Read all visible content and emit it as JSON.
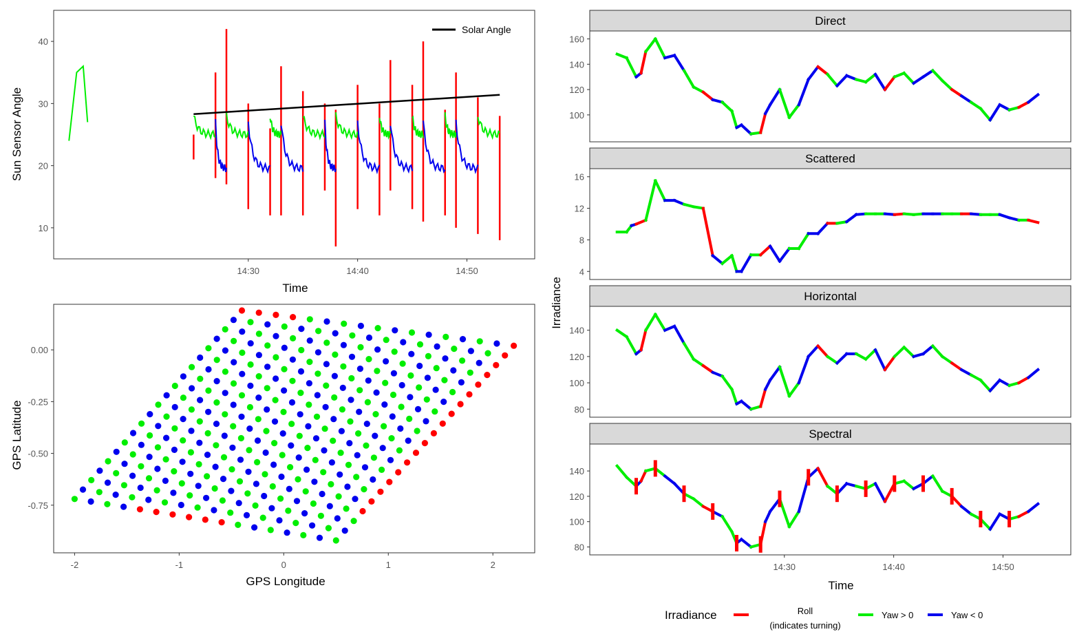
{
  "figure": {
    "legend": {
      "title": "Irradiance",
      "entries": [
        {
          "label_line1": "Roll",
          "label_line2": "(indicates turning)",
          "color": "#ff0000"
        },
        {
          "label_line1": "Yaw > 0",
          "label_line2": "",
          "color": "#00ee00"
        },
        {
          "label_line1": "Yaw < 0",
          "label_line2": "",
          "color": "#0000ee"
        }
      ]
    }
  },
  "chart_data": [
    {
      "id": "sun-sensor",
      "type": "line",
      "xlabel": "Time",
      "ylabel": "Sun Sensor Angle",
      "x_ticks": [
        "14:30",
        "14:40",
        "14:50"
      ],
      "y_ticks": [
        10,
        20,
        30,
        40
      ],
      "xlim_minutes": [
        852.2,
        896.2
      ],
      "ylim": [
        5,
        45
      ],
      "legend_label": "Solar Angle",
      "solar_angle": {
        "x": [
          "14:25",
          "14:53"
        ],
        "y": [
          28.3,
          31.4
        ]
      },
      "series_colors": {
        "roll": "#ff0000",
        "yaw_pos": "#00ee00",
        "yaw_neg": "#0000ee"
      },
      "roll_spikes": [
        {
          "t": "14:25",
          "min": 21,
          "max": 25
        },
        {
          "t": "14:27",
          "min": 18,
          "max": 35
        },
        {
          "t": "14:28",
          "min": 17,
          "max": 42
        },
        {
          "t": "14:30",
          "min": 13,
          "max": 30
        },
        {
          "t": "14:32",
          "min": 12,
          "max": 26
        },
        {
          "t": "14:33",
          "min": 12,
          "max": 36
        },
        {
          "t": "14:35",
          "min": 12,
          "max": 32
        },
        {
          "t": "14:37",
          "min": 16,
          "max": 30
        },
        {
          "t": "14:38",
          "min": 7,
          "max": 29
        },
        {
          "t": "14:40",
          "min": 13,
          "max": 33
        },
        {
          "t": "14:42",
          "min": 12,
          "max": 30
        },
        {
          "t": "14:43",
          "min": 16,
          "max": 37
        },
        {
          "t": "14:45",
          "min": 13,
          "max": 33
        },
        {
          "t": "14:46",
          "min": 11,
          "max": 40
        },
        {
          "t": "14:48",
          "min": 12,
          "max": 29
        },
        {
          "t": "14:49",
          "min": 10,
          "max": 35
        },
        {
          "t": "14:51",
          "min": 9,
          "max": 31
        },
        {
          "t": "14:53",
          "min": 8,
          "max": 28
        }
      ]
    },
    {
      "id": "gps-track",
      "type": "scatter",
      "xlabel": "GPS Longitude",
      "ylabel": "GPS Latitude",
      "x_ticks": [
        -2,
        -1,
        0,
        1,
        2
      ],
      "y_ticks": [
        "0.00",
        "-0.25",
        "-0.50",
        "-0.75"
      ],
      "xlim": [
        -2.2,
        2.4
      ],
      "ylim": [
        -0.98,
        0.22
      ],
      "corners": [
        {
          "lon": -2.0,
          "lat": -0.72
        },
        {
          "lon": -0.4,
          "lat": 0.19
        },
        {
          "lon": 2.2,
          "lat": 0.02
        },
        {
          "lon": 0.5,
          "lat": -0.92
        }
      ]
    },
    {
      "id": "irradiance-facets",
      "type": "line",
      "xlabel": "Time",
      "ylabel": "Irradiance",
      "x_ticks": [
        "14:30",
        "14:40",
        "14:50"
      ],
      "xlim_minutes": [
        852.2,
        896.2
      ],
      "panels": [
        {
          "name": "Direct",
          "y_ticks": [
            100,
            120,
            140,
            160
          ],
          "ylim": [
            82,
            163
          ],
          "x": [
            0,
            1,
            2,
            2.5,
            3,
            4,
            5,
            6,
            7,
            8,
            9,
            10,
            11,
            12,
            12.5,
            13,
            14,
            15,
            15.5,
            16,
            17,
            18,
            19,
            20,
            21,
            22,
            23,
            24,
            25,
            26,
            27,
            28,
            29,
            30,
            31,
            32,
            33,
            34,
            35,
            36,
            37,
            38,
            39,
            40,
            41,
            42,
            43,
            44
          ],
          "y": [
            148,
            145,
            130,
            133,
            150,
            160,
            145,
            147,
            135,
            122,
            118,
            112,
            110,
            103,
            90,
            92,
            85,
            86,
            101,
            108,
            120,
            98,
            108,
            128,
            138,
            132,
            123,
            131,
            128,
            126,
            132,
            120,
            130,
            133,
            125,
            130,
            135,
            127,
            120,
            115,
            110,
            105,
            96,
            108,
            104,
            106,
            110,
            116
          ]
        },
        {
          "name": "Scattered",
          "y_ticks": [
            4,
            8,
            12,
            16
          ],
          "ylim": [
            3.5,
            16.5
          ],
          "x": [
            0,
            1,
            1.5,
            2,
            3,
            4,
            5,
            6,
            7,
            8,
            9,
            10,
            11,
            12,
            12.5,
            13,
            14,
            15,
            16,
            17,
            18,
            19,
            20,
            21,
            22,
            23,
            24,
            25,
            26,
            27,
            28,
            29,
            30,
            31,
            32,
            33,
            34,
            35,
            36,
            37,
            38,
            39,
            40,
            41,
            42,
            43,
            44
          ],
          "y": [
            9,
            9,
            9.8,
            10,
            10.5,
            15.5,
            13,
            13,
            12.5,
            12.2,
            12,
            6,
            5,
            6,
            4,
            4,
            6.1,
            6.1,
            7.2,
            5.3,
            6.9,
            6.9,
            8.8,
            8.8,
            10.1,
            10.1,
            10.3,
            11.2,
            11.3,
            11.3,
            11.3,
            11.2,
            11.3,
            11.2,
            11.3,
            11.3,
            11.3,
            11.3,
            11.3,
            11.3,
            11.2,
            11.2,
            11.2,
            10.8,
            10.5,
            10.5,
            10.2
          ]
        },
        {
          "name": "Horizontal",
          "y_ticks": [
            80,
            100,
            120,
            140
          ],
          "ylim": [
            77,
            155
          ],
          "x": [
            0,
            1,
            2,
            2.5,
            3,
            4,
            5,
            6,
            7,
            8,
            9,
            10,
            11,
            12,
            12.5,
            13,
            14,
            15,
            15.5,
            16,
            17,
            18,
            19,
            20,
            21,
            22,
            23,
            24,
            25,
            26,
            27,
            28,
            29,
            30,
            31,
            32,
            33,
            34,
            35,
            36,
            37,
            38,
            39,
            40,
            41,
            42,
            43,
            44
          ],
          "y": [
            140,
            135,
            122,
            125,
            140,
            152,
            140,
            143,
            130,
            118,
            113,
            108,
            105,
            95,
            84,
            86,
            80,
            82,
            95,
            102,
            112,
            90,
            100,
            120,
            128,
            120,
            115,
            122,
            122,
            118,
            125,
            110,
            120,
            127,
            120,
            122,
            128,
            120,
            115,
            110,
            106,
            102,
            94,
            102,
            98,
            100,
            104,
            110
          ]
        },
        {
          "name": "Spectral",
          "y_ticks": [
            80,
            100,
            120,
            140
          ],
          "ylim": [
            77,
            158
          ],
          "x": [
            0,
            1,
            2,
            2.5,
            3,
            4,
            5,
            6,
            7,
            8,
            9,
            10,
            11,
            12,
            12.5,
            13,
            14,
            15,
            15.5,
            16,
            17,
            18,
            19,
            20,
            21,
            22,
            23,
            24,
            25,
            26,
            27,
            28,
            29,
            30,
            31,
            32,
            33,
            34,
            35,
            36,
            37,
            38,
            39,
            40,
            41,
            42,
            43,
            44
          ],
          "y": [
            144,
            135,
            128,
            132,
            140,
            142,
            136,
            130,
            122,
            118,
            112,
            108,
            104,
            92,
            83,
            86,
            80,
            82,
            100,
            108,
            118,
            96,
            108,
            135,
            142,
            128,
            122,
            130,
            128,
            126,
            130,
            116,
            130,
            132,
            126,
            130,
            136,
            124,
            120,
            112,
            106,
            102,
            94,
            106,
            102,
            104,
            108,
            114
          ]
        }
      ]
    }
  ]
}
